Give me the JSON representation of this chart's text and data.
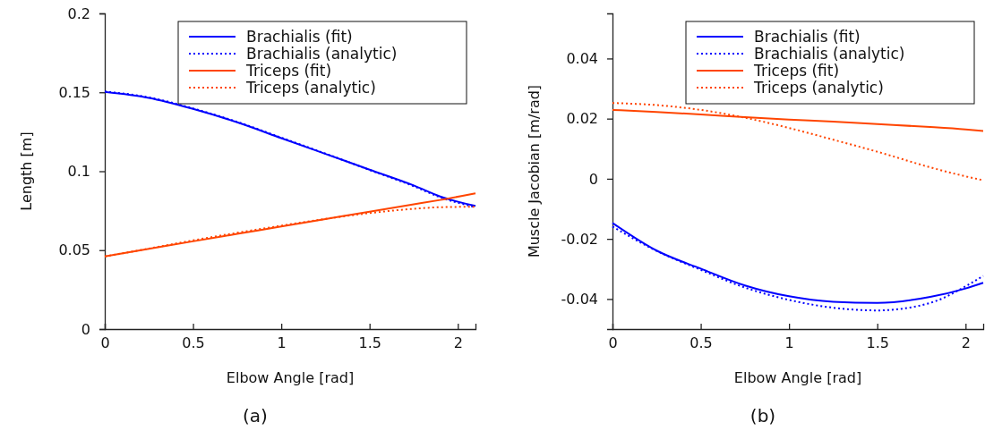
{
  "chart_data": [
    {
      "type": "line",
      "xlabel": "Elbow Angle [rad]",
      "ylabel": "Length [m]",
      "annotations": [
        "(a)"
      ],
      "legend": "top right",
      "xlim": [
        0,
        2.1
      ],
      "xticks": [
        0,
        0.5,
        1,
        1.5,
        2
      ],
      "ylim": [
        0,
        0.2
      ],
      "yticks": [
        0,
        0.05,
        0.1,
        0.15,
        0.2
      ],
      "x": [
        0,
        0.25,
        0.5,
        0.75,
        1,
        1.25,
        1.5,
        1.75,
        1.9,
        2.1
      ],
      "series": [
        {
          "name": "Brachialis (fit)",
          "color": "#0000ff",
          "line_style": "solid",
          "values": [
            0.1503,
            0.1465,
            0.1395,
            0.131,
            0.121,
            0.111,
            0.101,
            0.091,
            0.084,
            0.078
          ]
        },
        {
          "name": "Brachialis (analytic)",
          "color": "#0000ff",
          "line_style": "dotted",
          "values": [
            0.1505,
            0.1468,
            0.1398,
            0.1313,
            0.1213,
            0.1112,
            0.1008,
            0.0905,
            0.0835,
            0.0772
          ]
        },
        {
          "name": "Triceps (fit)",
          "color": "#ff4500",
          "line_style": "solid",
          "values": [
            0.046,
            0.0508,
            0.0556,
            0.0603,
            0.065,
            0.0697,
            0.0744,
            0.079,
            0.0818,
            0.086
          ]
        },
        {
          "name": "Triceps (analytic)",
          "color": "#ff4500",
          "line_style": "dotted",
          "values": [
            0.046,
            0.051,
            0.0562,
            0.061,
            0.0655,
            0.0698,
            0.0735,
            0.0762,
            0.0772,
            0.0775
          ]
        }
      ]
    },
    {
      "type": "line",
      "xlabel": "Elbow Angle [rad]",
      "ylabel": "Muscle Jacobian [m/rad]",
      "annotations": [
        "(b)"
      ],
      "legend": "top right",
      "xlim": [
        0,
        2.1
      ],
      "xticks": [
        0,
        0.5,
        1,
        1.5,
        2
      ],
      "ylim": [
        -0.05,
        0.055
      ],
      "yticks": [
        -0.04,
        -0.02,
        0,
        0.02,
        0.04
      ],
      "x": [
        0,
        0.25,
        0.5,
        0.75,
        1,
        1.25,
        1.5,
        1.8,
        2,
        2.1
      ],
      "series": [
        {
          "name": "Brachialis (fit)",
          "color": "#0000ff",
          "line_style": "solid",
          "values": [
            -0.0147,
            -0.0239,
            -0.0299,
            -0.0355,
            -0.0391,
            -0.0409,
            -0.0413,
            -0.0393,
            -0.0365,
            -0.0346
          ]
        },
        {
          "name": "Brachialis (analytic)",
          "color": "#0000ff",
          "line_style": "dotted",
          "values": [
            -0.0159,
            -0.024,
            -0.0303,
            -0.0362,
            -0.0403,
            -0.0429,
            -0.0438,
            -0.0413,
            -0.0358,
            -0.0323
          ]
        },
        {
          "name": "Triceps (fit)",
          "color": "#ff4500",
          "line_style": "solid",
          "values": [
            0.0229,
            0.0222,
            0.0214,
            0.0205,
            0.0197,
            0.019,
            0.0182,
            0.0172,
            0.0164,
            0.0159
          ]
        },
        {
          "name": "Triceps (analytic)",
          "color": "#ff4500",
          "line_style": "dotted",
          "values": [
            0.0252,
            0.0245,
            0.0229,
            0.0203,
            0.0169,
            0.013,
            0.009,
            0.0038,
            0.0008,
            -0.0005
          ]
        }
      ]
    }
  ]
}
